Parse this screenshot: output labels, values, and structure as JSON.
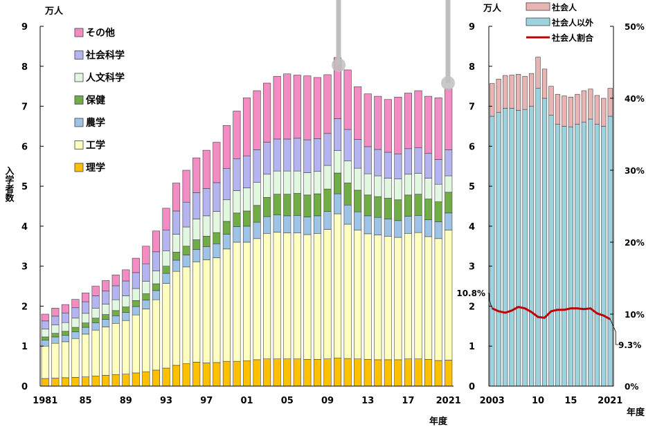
{
  "chart_data": [
    {
      "type": "bar",
      "stacked": true,
      "unit_label": "万人",
      "xlabel": "年度",
      "ylabel": "入学者数",
      "ylim": [
        0,
        9
      ],
      "yticks": [
        "0",
        "1",
        "2",
        "3",
        "4",
        "5",
        "6",
        "7",
        "8",
        "9"
      ],
      "years": [
        1981,
        1982,
        1983,
        1984,
        1985,
        1986,
        1987,
        1988,
        1989,
        1990,
        1991,
        1992,
        1993,
        1994,
        1995,
        1996,
        1997,
        1998,
        1999,
        2000,
        2001,
        2002,
        2003,
        2004,
        2005,
        2006,
        2007,
        2008,
        2009,
        2010,
        2011,
        2012,
        2013,
        2014,
        2015,
        2016,
        2017,
        2018,
        2019,
        2020,
        2021
      ],
      "xtick_labels": [
        {
          "year": 1981,
          "label": "1981"
        },
        {
          "year": 1985,
          "label": "85"
        },
        {
          "year": 1989,
          "label": "89"
        },
        {
          "year": 1993,
          "label": "93"
        },
        {
          "year": 1997,
          "label": "97"
        },
        {
          "year": 2001,
          "label": "01"
        },
        {
          "year": 2005,
          "label": "05"
        },
        {
          "year": 2009,
          "label": "09"
        },
        {
          "year": 2013,
          "label": "13"
        },
        {
          "year": 2017,
          "label": "17"
        },
        {
          "year": 2021,
          "label": "2021"
        }
      ],
      "legend_position": "top-left",
      "series": [
        {
          "name": "理学",
          "color": "#FFC000",
          "values": [
            0.19,
            0.2,
            0.21,
            0.22,
            0.23,
            0.25,
            0.27,
            0.29,
            0.3,
            0.33,
            0.36,
            0.4,
            0.45,
            0.52,
            0.56,
            0.6,
            0.58,
            0.59,
            0.62,
            0.62,
            0.63,
            0.66,
            0.68,
            0.68,
            0.68,
            0.68,
            0.67,
            0.67,
            0.68,
            0.7,
            0.69,
            0.68,
            0.67,
            0.66,
            0.66,
            0.66,
            0.68,
            0.68,
            0.67,
            0.64,
            0.65
          ]
        },
        {
          "name": "工学",
          "color": "#FFFFC0",
          "values": [
            0.81,
            0.87,
            0.9,
            0.97,
            1.07,
            1.15,
            1.21,
            1.28,
            1.34,
            1.45,
            1.57,
            1.76,
            2.12,
            2.35,
            2.42,
            2.51,
            2.58,
            2.62,
            2.81,
            2.98,
            2.97,
            3.03,
            3.14,
            3.17,
            3.15,
            3.15,
            3.12,
            3.15,
            3.24,
            3.61,
            3.36,
            3.22,
            3.14,
            3.12,
            3.09,
            3.06,
            3.14,
            3.16,
            3.07,
            3.05,
            3.25
          ]
        },
        {
          "name": "農学",
          "color": "#9DC3E6",
          "values": [
            0.15,
            0.16,
            0.16,
            0.17,
            0.17,
            0.18,
            0.19,
            0.19,
            0.2,
            0.21,
            0.22,
            0.23,
            0.25,
            0.28,
            0.3,
            0.31,
            0.33,
            0.35,
            0.37,
            0.39,
            0.4,
            0.41,
            0.42,
            0.43,
            0.43,
            0.44,
            0.44,
            0.44,
            0.45,
            0.5,
            0.48,
            0.46,
            0.45,
            0.44,
            0.43,
            0.42,
            0.43,
            0.43,
            0.42,
            0.42,
            0.43
          ]
        },
        {
          "name": "保健",
          "color": "#70AD47",
          "values": [
            0.08,
            0.09,
            0.1,
            0.11,
            0.11,
            0.12,
            0.12,
            0.13,
            0.14,
            0.15,
            0.16,
            0.17,
            0.18,
            0.2,
            0.22,
            0.24,
            0.26,
            0.28,
            0.32,
            0.34,
            0.38,
            0.42,
            0.48,
            0.52,
            0.54,
            0.55,
            0.55,
            0.55,
            0.56,
            0.52,
            0.55,
            0.54,
            0.52,
            0.52,
            0.52,
            0.52,
            0.53,
            0.53,
            0.52,
            0.5,
            0.52
          ]
        },
        {
          "name": "人文科学",
          "color": "#E2F7E0",
          "values": [
            0.2,
            0.21,
            0.22,
            0.23,
            0.24,
            0.25,
            0.26,
            0.27,
            0.28,
            0.3,
            0.31,
            0.32,
            0.38,
            0.45,
            0.48,
            0.52,
            0.51,
            0.53,
            0.54,
            0.56,
            0.58,
            0.58,
            0.58,
            0.58,
            0.58,
            0.56,
            0.56,
            0.56,
            0.59,
            0.56,
            0.55,
            0.55,
            0.53,
            0.52,
            0.5,
            0.52,
            0.52,
            0.52,
            0.52,
            0.44,
            0.41
          ]
        },
        {
          "name": "社会科学",
          "color": "#B4B4F0",
          "values": [
            0.2,
            0.22,
            0.24,
            0.26,
            0.29,
            0.31,
            0.33,
            0.35,
            0.37,
            0.4,
            0.44,
            0.48,
            0.52,
            0.58,
            0.62,
            0.66,
            0.68,
            0.72,
            0.78,
            0.8,
            0.8,
            0.81,
            0.8,
            0.8,
            0.8,
            0.82,
            0.82,
            0.82,
            0.8,
            0.8,
            0.79,
            0.72,
            0.68,
            0.66,
            0.65,
            0.63,
            0.64,
            0.64,
            0.62,
            0.62,
            0.65
          ]
        },
        {
          "name": "その他",
          "color": "#F28CC2",
          "values": [
            0.17,
            0.2,
            0.21,
            0.21,
            0.22,
            0.24,
            0.26,
            0.27,
            0.28,
            0.36,
            0.44,
            0.52,
            0.55,
            0.7,
            0.8,
            0.87,
            0.96,
            1.01,
            1.08,
            1.19,
            1.45,
            1.48,
            1.48,
            1.57,
            1.63,
            1.58,
            1.6,
            1.53,
            1.47,
            1.53,
            1.49,
            1.32,
            1.32,
            1.33,
            1.32,
            1.42,
            1.39,
            1.43,
            1.43,
            1.54,
            1.53
          ]
        }
      ]
    },
    {
      "type": "bar",
      "stacked": true,
      "unit_label": "万人",
      "xlabel": "年度",
      "ylim": [
        0,
        9
      ],
      "yticks": [
        "0",
        "1",
        "2",
        "3",
        "4",
        "5",
        "6",
        "7",
        "8",
        "9"
      ],
      "y2lim": [
        0,
        50
      ],
      "y2ticks": [
        "0%",
        "10%",
        "20%",
        "30%",
        "40%",
        "50%"
      ],
      "years": [
        2003,
        2004,
        2005,
        2006,
        2007,
        2008,
        2009,
        2010,
        2011,
        2012,
        2013,
        2014,
        2015,
        2016,
        2017,
        2018,
        2019,
        2020,
        2021
      ],
      "xtick_labels": [
        {
          "year": 2003,
          "label": "2003"
        },
        {
          "year": 2010,
          "label": "10"
        },
        {
          "year": 2015,
          "label": "15"
        },
        {
          "year": 2021,
          "label": "2021"
        }
      ],
      "legend_position": "top-right",
      "series": [
        {
          "name": "社会人以外",
          "color": "#9DD3DF",
          "values": [
            6.75,
            6.85,
            6.95,
            6.95,
            6.9,
            6.92,
            7.0,
            7.45,
            7.2,
            6.78,
            6.55,
            6.5,
            6.48,
            6.55,
            6.6,
            6.68,
            6.55,
            6.5,
            6.75
          ]
        },
        {
          "name": "社会人",
          "color": "#E8B4B4",
          "values": [
            0.82,
            0.83,
            0.82,
            0.83,
            0.9,
            0.83,
            0.82,
            0.78,
            0.73,
            0.72,
            0.75,
            0.76,
            0.75,
            0.75,
            0.79,
            0.75,
            0.72,
            0.7,
            0.7
          ]
        }
      ],
      "ratio_series": {
        "name": "社会人割合",
        "color": "#C00000",
        "values": [
          10.8,
          10.4,
          10.2,
          10.5,
          11.0,
          10.8,
          10.3,
          9.6,
          9.5,
          10.4,
          10.6,
          10.6,
          10.8,
          10.8,
          10.7,
          10.8,
          10.1,
          9.8,
          9.3
        ],
        "annotations": [
          {
            "year": 2003,
            "label": "10.8%"
          },
          {
            "year": 2021,
            "label": "9.3%"
          }
        ]
      }
    }
  ]
}
